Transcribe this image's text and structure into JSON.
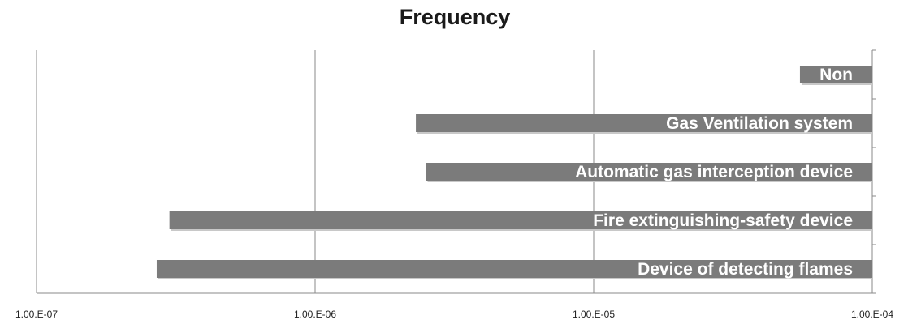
{
  "chart_data": {
    "type": "bar",
    "orientation": "horizontal",
    "title": "Frequency",
    "xlabel": "",
    "ylabel": "",
    "x_scale": "log",
    "xlim": [
      1e-07,
      0.0001
    ],
    "tick_labels": [
      "1.00.E-07",
      "1.00.E-06",
      "1.00.E-05",
      "1.00.E-04"
    ],
    "tick_values": [
      1e-07,
      1e-06,
      1e-05,
      0.0001
    ],
    "grid": true,
    "legend": "none",
    "bar_color": "#7b7b7b",
    "categories": [
      "Non",
      "Gas Ventilation system",
      "Automatic gas interception device",
      "Fire extinguishing-safety device",
      "Device of detecting flames"
    ],
    "values": [
      5.5e-05,
      2.3e-06,
      2.5e-06,
      3e-07,
      2.7e-07
    ]
  }
}
